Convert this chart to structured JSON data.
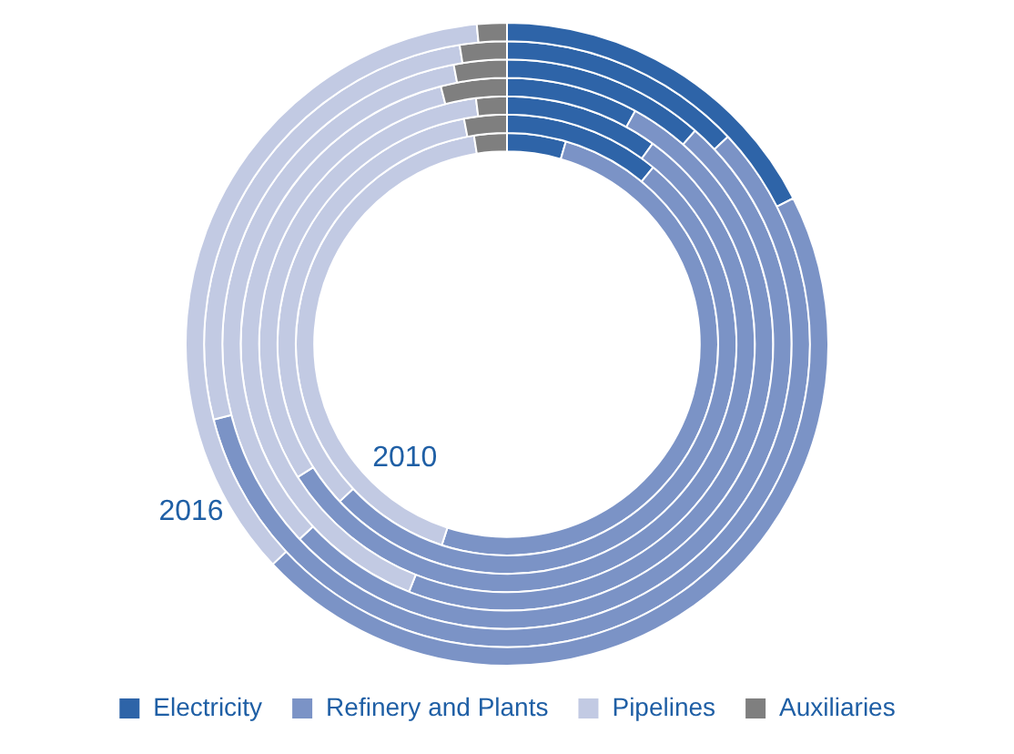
{
  "chart_data": {
    "type": "donut",
    "categories": [
      "Electricity",
      "Refinery and Plants",
      "Pipelines",
      "Auxiliaries"
    ],
    "colors": [
      "#2e64a8",
      "#7b93c6",
      "#c2cae3",
      "#7f7f7f"
    ],
    "legend": "bottom",
    "series": [
      {
        "name": "2010",
        "values": [
          4.5,
          50.5,
          42.5,
          2.5
        ]
      },
      {
        "values": [
          11,
          52,
          34,
          3
        ]
      },
      {
        "values": [
          10,
          56,
          32,
          2
        ]
      },
      {
        "values": [
          8,
          48,
          40,
          4
        ]
      },
      {
        "values": [
          11.5,
          51.5,
          34,
          3
        ]
      },
      {
        "values": [
          13,
          58,
          26.5,
          2.5
        ]
      },
      {
        "name": "2016",
        "values": [
          17.5,
          45.5,
          35.5,
          1.5
        ]
      }
    ]
  }
}
